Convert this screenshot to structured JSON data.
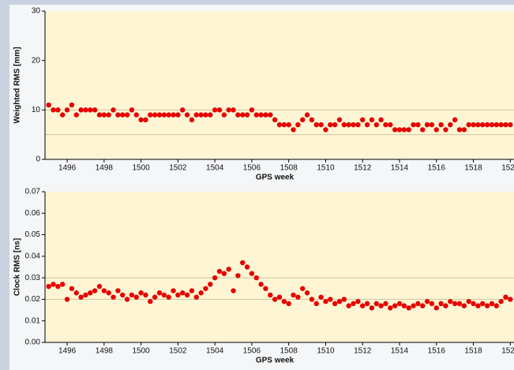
{
  "chart_data": [
    {
      "type": "scatter",
      "y_label": "Weighted RMS [mm]",
      "x_label": "GPS week",
      "color": "#e60000",
      "xlim": [
        1494.8,
        1520.2
      ],
      "xticks": [
        1496,
        1498,
        1500,
        1502,
        1504,
        1506,
        1508,
        1510,
        1512,
        1514,
        1516,
        1518,
        1520
      ],
      "ylim": [
        0,
        30
      ],
      "yticks": [
        0,
        10,
        20,
        30
      ],
      "reference_lines": [
        5,
        10
      ],
      "x": [
        1495,
        1495.25,
        1495.5,
        1495.75,
        1496,
        1496.25,
        1496.5,
        1496.75,
        1497,
        1497.25,
        1497.5,
        1497.75,
        1498,
        1498.25,
        1498.5,
        1498.75,
        1499,
        1499.25,
        1499.5,
        1499.75,
        1500,
        1500.25,
        1500.5,
        1500.75,
        1501,
        1501.25,
        1501.5,
        1501.75,
        1502,
        1502.25,
        1502.5,
        1502.75,
        1503,
        1503.25,
        1503.5,
        1503.75,
        1504,
        1504.25,
        1504.5,
        1504.75,
        1505,
        1505.25,
        1505.5,
        1505.75,
        1506,
        1506.25,
        1506.5,
        1506.75,
        1507,
        1507.25,
        1507.5,
        1507.75,
        1508,
        1508.25,
        1508.5,
        1508.75,
        1509,
        1509.25,
        1509.5,
        1509.75,
        1510,
        1510.25,
        1510.5,
        1510.75,
        1511,
        1511.25,
        1511.5,
        1511.75,
        1512,
        1512.25,
        1512.5,
        1512.75,
        1513,
        1513.25,
        1513.5,
        1513.75,
        1514,
        1514.25,
        1514.5,
        1514.75,
        1515,
        1515.25,
        1515.5,
        1515.75,
        1516,
        1516.25,
        1516.5,
        1516.75,
        1517,
        1517.25,
        1517.5,
        1517.75,
        1518,
        1518.25,
        1518.5,
        1518.75,
        1519,
        1519.25,
        1519.5,
        1519.75,
        1520
      ],
      "values": [
        11,
        10,
        10,
        9,
        10,
        11,
        9,
        10,
        10,
        10,
        10,
        9,
        9,
        9,
        10,
        9,
        9,
        9,
        10,
        9,
        8,
        8,
        9,
        9,
        9,
        9,
        9,
        9,
        9,
        10,
        9,
        8,
        9,
        9,
        9,
        9,
        10,
        10,
        9,
        10,
        10,
        9,
        9,
        9,
        10,
        9,
        9,
        9,
        9,
        8,
        7,
        7,
        7,
        6,
        7,
        8,
        9,
        8,
        7,
        7,
        6,
        7,
        7,
        8,
        7,
        7,
        7,
        7,
        8,
        7,
        8,
        7,
        8,
        7,
        7,
        6,
        6,
        6,
        6,
        7,
        7,
        6,
        7,
        7,
        6,
        7,
        6,
        7,
        8,
        6,
        6,
        7,
        7,
        7,
        7,
        7,
        7,
        7,
        7,
        7,
        7
      ]
    },
    {
      "type": "scatter",
      "y_label": "Clock RMS [ns]",
      "x_label": "GPS week",
      "color": "#e60000",
      "xlim": [
        1494.8,
        1520.2
      ],
      "xticks": [
        1496,
        1498,
        1500,
        1502,
        1504,
        1506,
        1508,
        1510,
        1512,
        1514,
        1516,
        1518,
        1520
      ],
      "ylim": [
        0,
        0.07
      ],
      "yticks": [
        {
          "value": 0,
          "label": "0.00"
        },
        0.01,
        0.02,
        0.03,
        0.04,
        0.05,
        0.06,
        0.07
      ],
      "reference_lines": [
        0.02,
        0.03
      ],
      "x": [
        1495,
        1495.25,
        1495.5,
        1495.75,
        1496,
        1496.25,
        1496.5,
        1496.75,
        1497,
        1497.25,
        1497.5,
        1497.75,
        1498,
        1498.25,
        1498.5,
        1498.75,
        1499,
        1499.25,
        1499.5,
        1499.75,
        1500,
        1500.25,
        1500.5,
        1500.75,
        1501,
        1501.25,
        1501.5,
        1501.75,
        1502,
        1502.25,
        1502.5,
        1502.75,
        1503,
        1503.25,
        1503.5,
        1503.75,
        1504,
        1504.25,
        1504.5,
        1504.75,
        1505,
        1505.25,
        1505.5,
        1505.75,
        1506,
        1506.25,
        1506.5,
        1506.75,
        1507,
        1507.25,
        1507.5,
        1507.75,
        1508,
        1508.25,
        1508.5,
        1508.75,
        1509,
        1509.25,
        1509.5,
        1509.75,
        1510,
        1510.25,
        1510.5,
        1510.75,
        1511,
        1511.25,
        1511.5,
        1511.75,
        1512,
        1512.25,
        1512.5,
        1512.75,
        1513,
        1513.25,
        1513.5,
        1513.75,
        1514,
        1514.25,
        1514.5,
        1514.75,
        1515,
        1515.25,
        1515.5,
        1515.75,
        1516,
        1516.25,
        1516.5,
        1516.75,
        1517,
        1517.25,
        1517.5,
        1517.75,
        1518,
        1518.25,
        1518.5,
        1518.75,
        1519,
        1519.25,
        1519.5,
        1519.75,
        1520
      ],
      "values": [
        0.026,
        0.027,
        0.026,
        0.027,
        0.02,
        0.025,
        0.023,
        0.021,
        0.022,
        0.023,
        0.024,
        0.026,
        0.024,
        0.023,
        0.021,
        0.024,
        0.022,
        0.02,
        0.022,
        0.021,
        0.023,
        0.022,
        0.019,
        0.021,
        0.023,
        0.022,
        0.021,
        0.024,
        0.022,
        0.023,
        0.022,
        0.024,
        0.021,
        0.023,
        0.025,
        0.027,
        0.03,
        0.033,
        0.032,
        0.034,
        0.024,
        0.031,
        0.037,
        0.035,
        0.032,
        0.03,
        0.027,
        0.025,
        0.022,
        0.02,
        0.021,
        0.019,
        0.018,
        0.022,
        0.021,
        0.025,
        0.023,
        0.02,
        0.018,
        0.021,
        0.019,
        0.02,
        0.018,
        0.019,
        0.02,
        0.017,
        0.018,
        0.019,
        0.017,
        0.018,
        0.016,
        0.018,
        0.017,
        0.018,
        0.016,
        0.017,
        0.018,
        0.017,
        0.016,
        0.017,
        0.018,
        0.017,
        0.019,
        0.018,
        0.016,
        0.018,
        0.017,
        0.019,
        0.018,
        0.018,
        0.017,
        0.019,
        0.018,
        0.017,
        0.018,
        0.017,
        0.018,
        0.017,
        0.019,
        0.021,
        0.02
      ]
    }
  ]
}
